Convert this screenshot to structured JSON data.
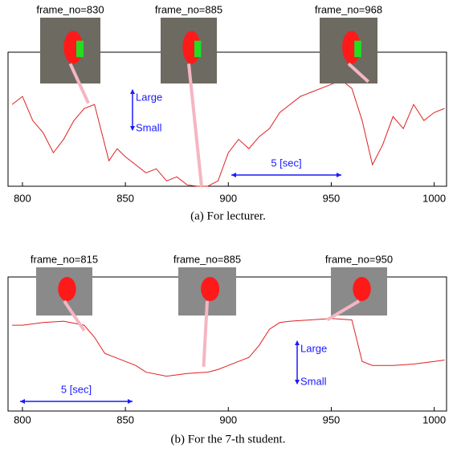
{
  "chart_data": [
    {
      "type": "line",
      "caption": "(a) For lecturer.",
      "x": [
        795,
        800,
        805,
        810,
        815,
        820,
        825,
        830,
        835,
        838,
        842,
        846,
        850,
        855,
        860,
        865,
        870,
        875,
        880,
        885,
        890,
        895,
        900,
        905,
        910,
        915,
        920,
        925,
        930,
        935,
        940,
        945,
        950,
        955,
        960,
        965,
        970,
        975,
        980,
        985,
        990,
        995,
        1000,
        1005
      ],
      "values": [
        61,
        67,
        49,
        40,
        25,
        35,
        49,
        58,
        61,
        43,
        19,
        28,
        22,
        16,
        10,
        13,
        4,
        7,
        1,
        0,
        0,
        4,
        25,
        35,
        28,
        37,
        43,
        55,
        61,
        67,
        70,
        73,
        76,
        79,
        73,
        49,
        16,
        31,
        52,
        43,
        61,
        49,
        55,
        58
      ],
      "color": "#e02020",
      "xlim": [
        793,
        1006
      ],
      "xticks": [
        800,
        850,
        900,
        950,
        1000
      ],
      "ylim": [
        0,
        100
      ],
      "frame_labels": [
        "frame_no=830",
        "frame_no=885",
        "frame_no=968"
      ],
      "scale_labels": [
        "Large",
        "Small"
      ],
      "duration_label": "5 [sec]"
    },
    {
      "type": "line",
      "caption": "(b) For the 7-th student.",
      "x": [
        795,
        800,
        810,
        820,
        830,
        835,
        840,
        845,
        850,
        855,
        860,
        870,
        880,
        890,
        895,
        900,
        910,
        915,
        920,
        925,
        930,
        940,
        950,
        960,
        965,
        970,
        980,
        990,
        1000,
        1005
      ],
      "values": [
        64,
        64,
        66,
        67,
        64,
        55,
        43,
        40,
        37,
        34,
        29,
        26,
        28,
        29,
        31,
        34,
        40,
        49,
        61,
        66,
        67,
        68,
        69,
        68,
        37,
        34,
        34,
        35,
        37,
        38
      ],
      "color": "#e02020",
      "xlim": [
        793,
        1006
      ],
      "xticks": [
        800,
        850,
        900,
        950,
        1000
      ],
      "ylim": [
        0,
        100
      ],
      "frame_labels": [
        "frame_no=815",
        "frame_no=885",
        "frame_no=950"
      ],
      "scale_labels": [
        "Large",
        "Small"
      ],
      "duration_label": "5 [sec]"
    }
  ]
}
